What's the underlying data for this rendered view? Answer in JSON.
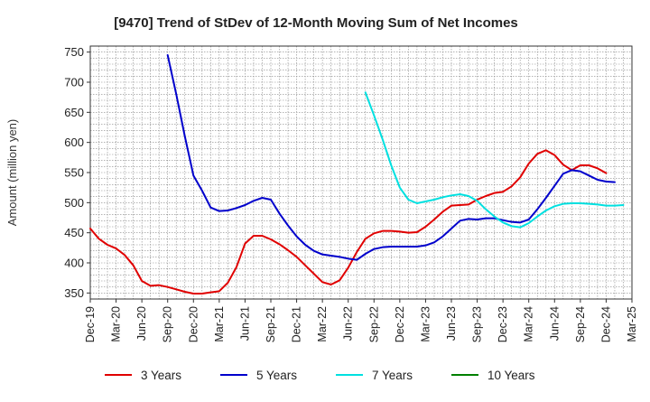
{
  "chart_data": {
    "type": "line",
    "title": "[9470]  Trend of StDev of 12-Month Moving Sum of Net Incomes",
    "ylabel": "Amount (million yen)",
    "xlabel": "",
    "ylim": [
      340,
      760
    ],
    "yticks": [
      350,
      400,
      450,
      500,
      550,
      600,
      650,
      700,
      750
    ],
    "x_start": "Dec-19",
    "x_end": "Mar-25",
    "x_tick_labels": [
      "Dec-19",
      "Mar-20",
      "Jun-20",
      "Sep-20",
      "Dec-20",
      "Mar-21",
      "Jun-21",
      "Sep-21",
      "Dec-21",
      "Mar-22",
      "Jun-22",
      "Sep-22",
      "Dec-22",
      "Mar-23",
      "Jun-23",
      "Sep-23",
      "Dec-23",
      "Mar-24",
      "Jun-24",
      "Sep-24",
      "Dec-24",
      "Mar-25"
    ],
    "grid": true,
    "legend_position": "bottom",
    "series": [
      {
        "name": "3 Years",
        "color": "#e00000",
        "start": "Dec-19",
        "values": [
          457,
          440,
          430,
          424,
          413,
          396,
          370,
          362,
          363,
          360,
          356,
          352,
          349,
          349,
          351,
          353,
          367,
          393,
          432,
          445,
          445,
          439,
          431,
          421,
          410,
          396,
          382,
          368,
          364,
          371,
          392,
          418,
          440,
          449,
          453,
          453,
          452,
          450,
          451,
          460,
          472,
          485,
          495,
          496,
          497,
          505,
          511,
          516,
          518,
          527,
          542,
          565,
          581,
          587,
          579,
          563,
          554,
          562,
          562,
          557,
          549
        ]
      },
      {
        "name": "5 Years",
        "color": "#0000cc",
        "start": "Sep-20",
        "values": [
          745,
          680,
          610,
          545,
          520,
          492,
          486,
          487,
          491,
          496,
          503,
          508,
          505,
          482,
          462,
          444,
          430,
          420,
          414,
          412,
          410,
          407,
          405,
          415,
          423,
          426,
          427,
          427,
          427,
          427,
          429,
          434,
          444,
          457,
          470,
          473,
          472,
          474,
          474,
          471,
          468,
          467,
          472,
          489,
          508,
          528,
          548,
          554,
          552,
          545,
          538,
          535,
          534
        ]
      },
      {
        "name": "7 Years",
        "color": "#00e0e0",
        "start": "Aug-22",
        "values": [
          683,
          645,
          605,
          562,
          525,
          505,
          499,
          502,
          505,
          509,
          512,
          514,
          511,
          503,
          489,
          477,
          467,
          461,
          459,
          466,
          477,
          487,
          494,
          498,
          499,
          499,
          498,
          497,
          495,
          495,
          496
        ]
      },
      {
        "name": "10 Years",
        "color": "#008000",
        "start": "Dec-24",
        "values": []
      }
    ]
  }
}
